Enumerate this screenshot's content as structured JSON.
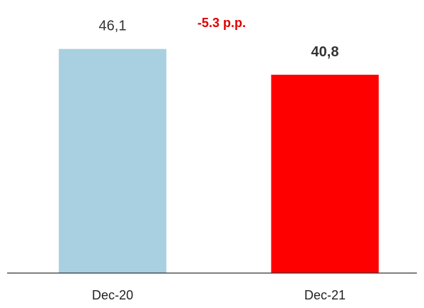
{
  "chart_data": {
    "type": "bar",
    "categories": [
      "Dec-20",
      "Dec-21"
    ],
    "values": [
      46.1,
      40.8
    ],
    "data_labels": [
      "46,1",
      "40,8"
    ],
    "data_label_bold": [
      false,
      true
    ],
    "bar_colors": [
      "#a8d0e0",
      "#ff0000"
    ],
    "annotation": {
      "text": "-5.3 p.p.",
      "color": "#e00000"
    },
    "ylim": [
      0,
      55
    ],
    "grid": false,
    "axis_line_color": "#333333",
    "title": "",
    "xlabel": "",
    "ylabel": ""
  }
}
